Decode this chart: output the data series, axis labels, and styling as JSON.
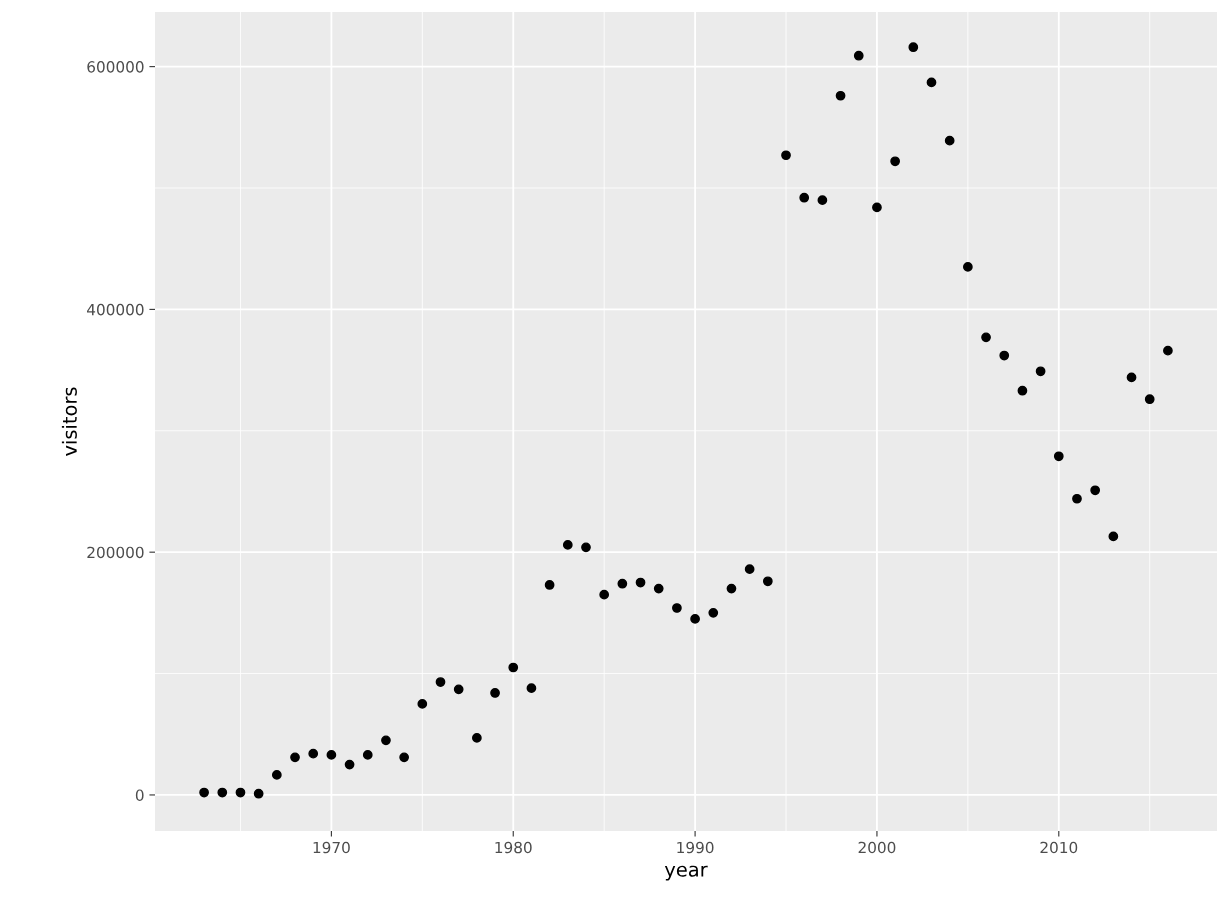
{
  "chart_data": {
    "type": "scatter",
    "xlabel": "year",
    "ylabel": "visitors",
    "x": [
      1963,
      1964,
      1965,
      1966,
      1967,
      1968,
      1969,
      1970,
      1971,
      1972,
      1973,
      1974,
      1975,
      1976,
      1977,
      1978,
      1979,
      1980,
      1981,
      1982,
      1983,
      1984,
      1985,
      1986,
      1987,
      1988,
      1989,
      1990,
      1991,
      1992,
      1993,
      1994,
      1995,
      1996,
      1997,
      1998,
      1999,
      2000,
      2001,
      2002,
      2003,
      2004,
      2005,
      2006,
      2007,
      2008,
      2009,
      2010,
      2011,
      2012,
      2013,
      2014,
      2015,
      2016
    ],
    "series": [
      {
        "color": "#000000",
        "values": [
          2000,
          2000,
          2000,
          1000,
          16500,
          31000,
          34000,
          33000,
          25000,
          33000,
          45000,
          31000,
          75000,
          93000,
          87000,
          47000,
          84000,
          105000,
          88000,
          173000,
          206000,
          204000,
          165000,
          174000,
          175000,
          170000,
          154000,
          145000,
          150000,
          170000,
          186000,
          176000,
          527000,
          492000,
          490000,
          576000,
          609000,
          484000,
          522000,
          616000,
          587000,
          539000,
          435000,
          377000,
          362000,
          333000,
          349000,
          279000,
          244000,
          251000,
          213000,
          344000,
          326000,
          366000
        ]
      }
    ],
    "xlim": [
      1960.3,
      2018.7
    ],
    "xticks": [
      1970,
      1980,
      1990,
      2000,
      2010
    ],
    "ylim": [
      -29700,
      645000
    ],
    "yticks": [
      0,
      200000,
      400000,
      600000
    ],
    "grid": true,
    "marker": "circle"
  }
}
